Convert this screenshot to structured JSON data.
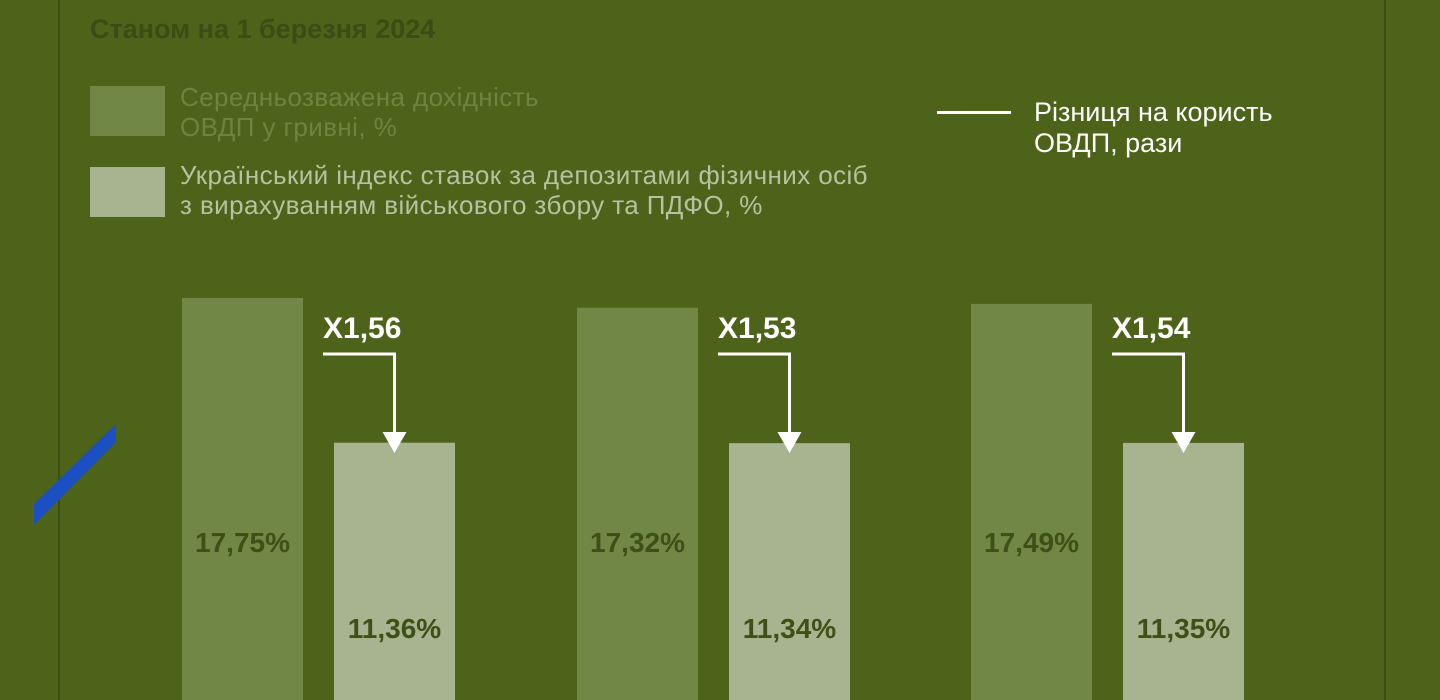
{
  "subtitle": "Станом на 1 березня 2024",
  "legend": {
    "series1": {
      "label_line1": "Середньозважена дохідність",
      "label_line2": "ОВДП у гривні, %",
      "color": "#718745",
      "text_color": "#6c8440"
    },
    "series2": {
      "label_line1": "Український індекс ставок за депозитами фізичних осіб",
      "label_line2": "з вирахуванням військового збору та ПДФО, %",
      "color": "#a7b48f",
      "text_color": "#b6c2a0"
    },
    "difference": {
      "label_line1": "Різниця на користь",
      "label_line2": "ОВДП, рази"
    }
  },
  "colors": {
    "background": "#4c6319",
    "bar_label": "#3e4f18",
    "annotation": "#ffffff",
    "accent_blue": "#1c4fc4"
  },
  "chart_data": {
    "type": "bar",
    "series": [
      {
        "name": "Середньозважена дохідність ОВДП у гривні, %",
        "values": [
          17.75,
          17.32,
          17.49
        ],
        "labels": [
          "17,75%",
          "17,32%",
          "17,49%"
        ]
      },
      {
        "name": "Український індекс ставок за депозитами фізичних осіб з вирахуванням військового збору та ПДФО, %",
        "values": [
          11.36,
          11.34,
          11.35
        ],
        "labels": [
          "11,36%",
          "11,34%",
          "11,35%"
        ]
      }
    ],
    "ratios": [
      "X1,56",
      "X1,53",
      "X1,54"
    ]
  }
}
